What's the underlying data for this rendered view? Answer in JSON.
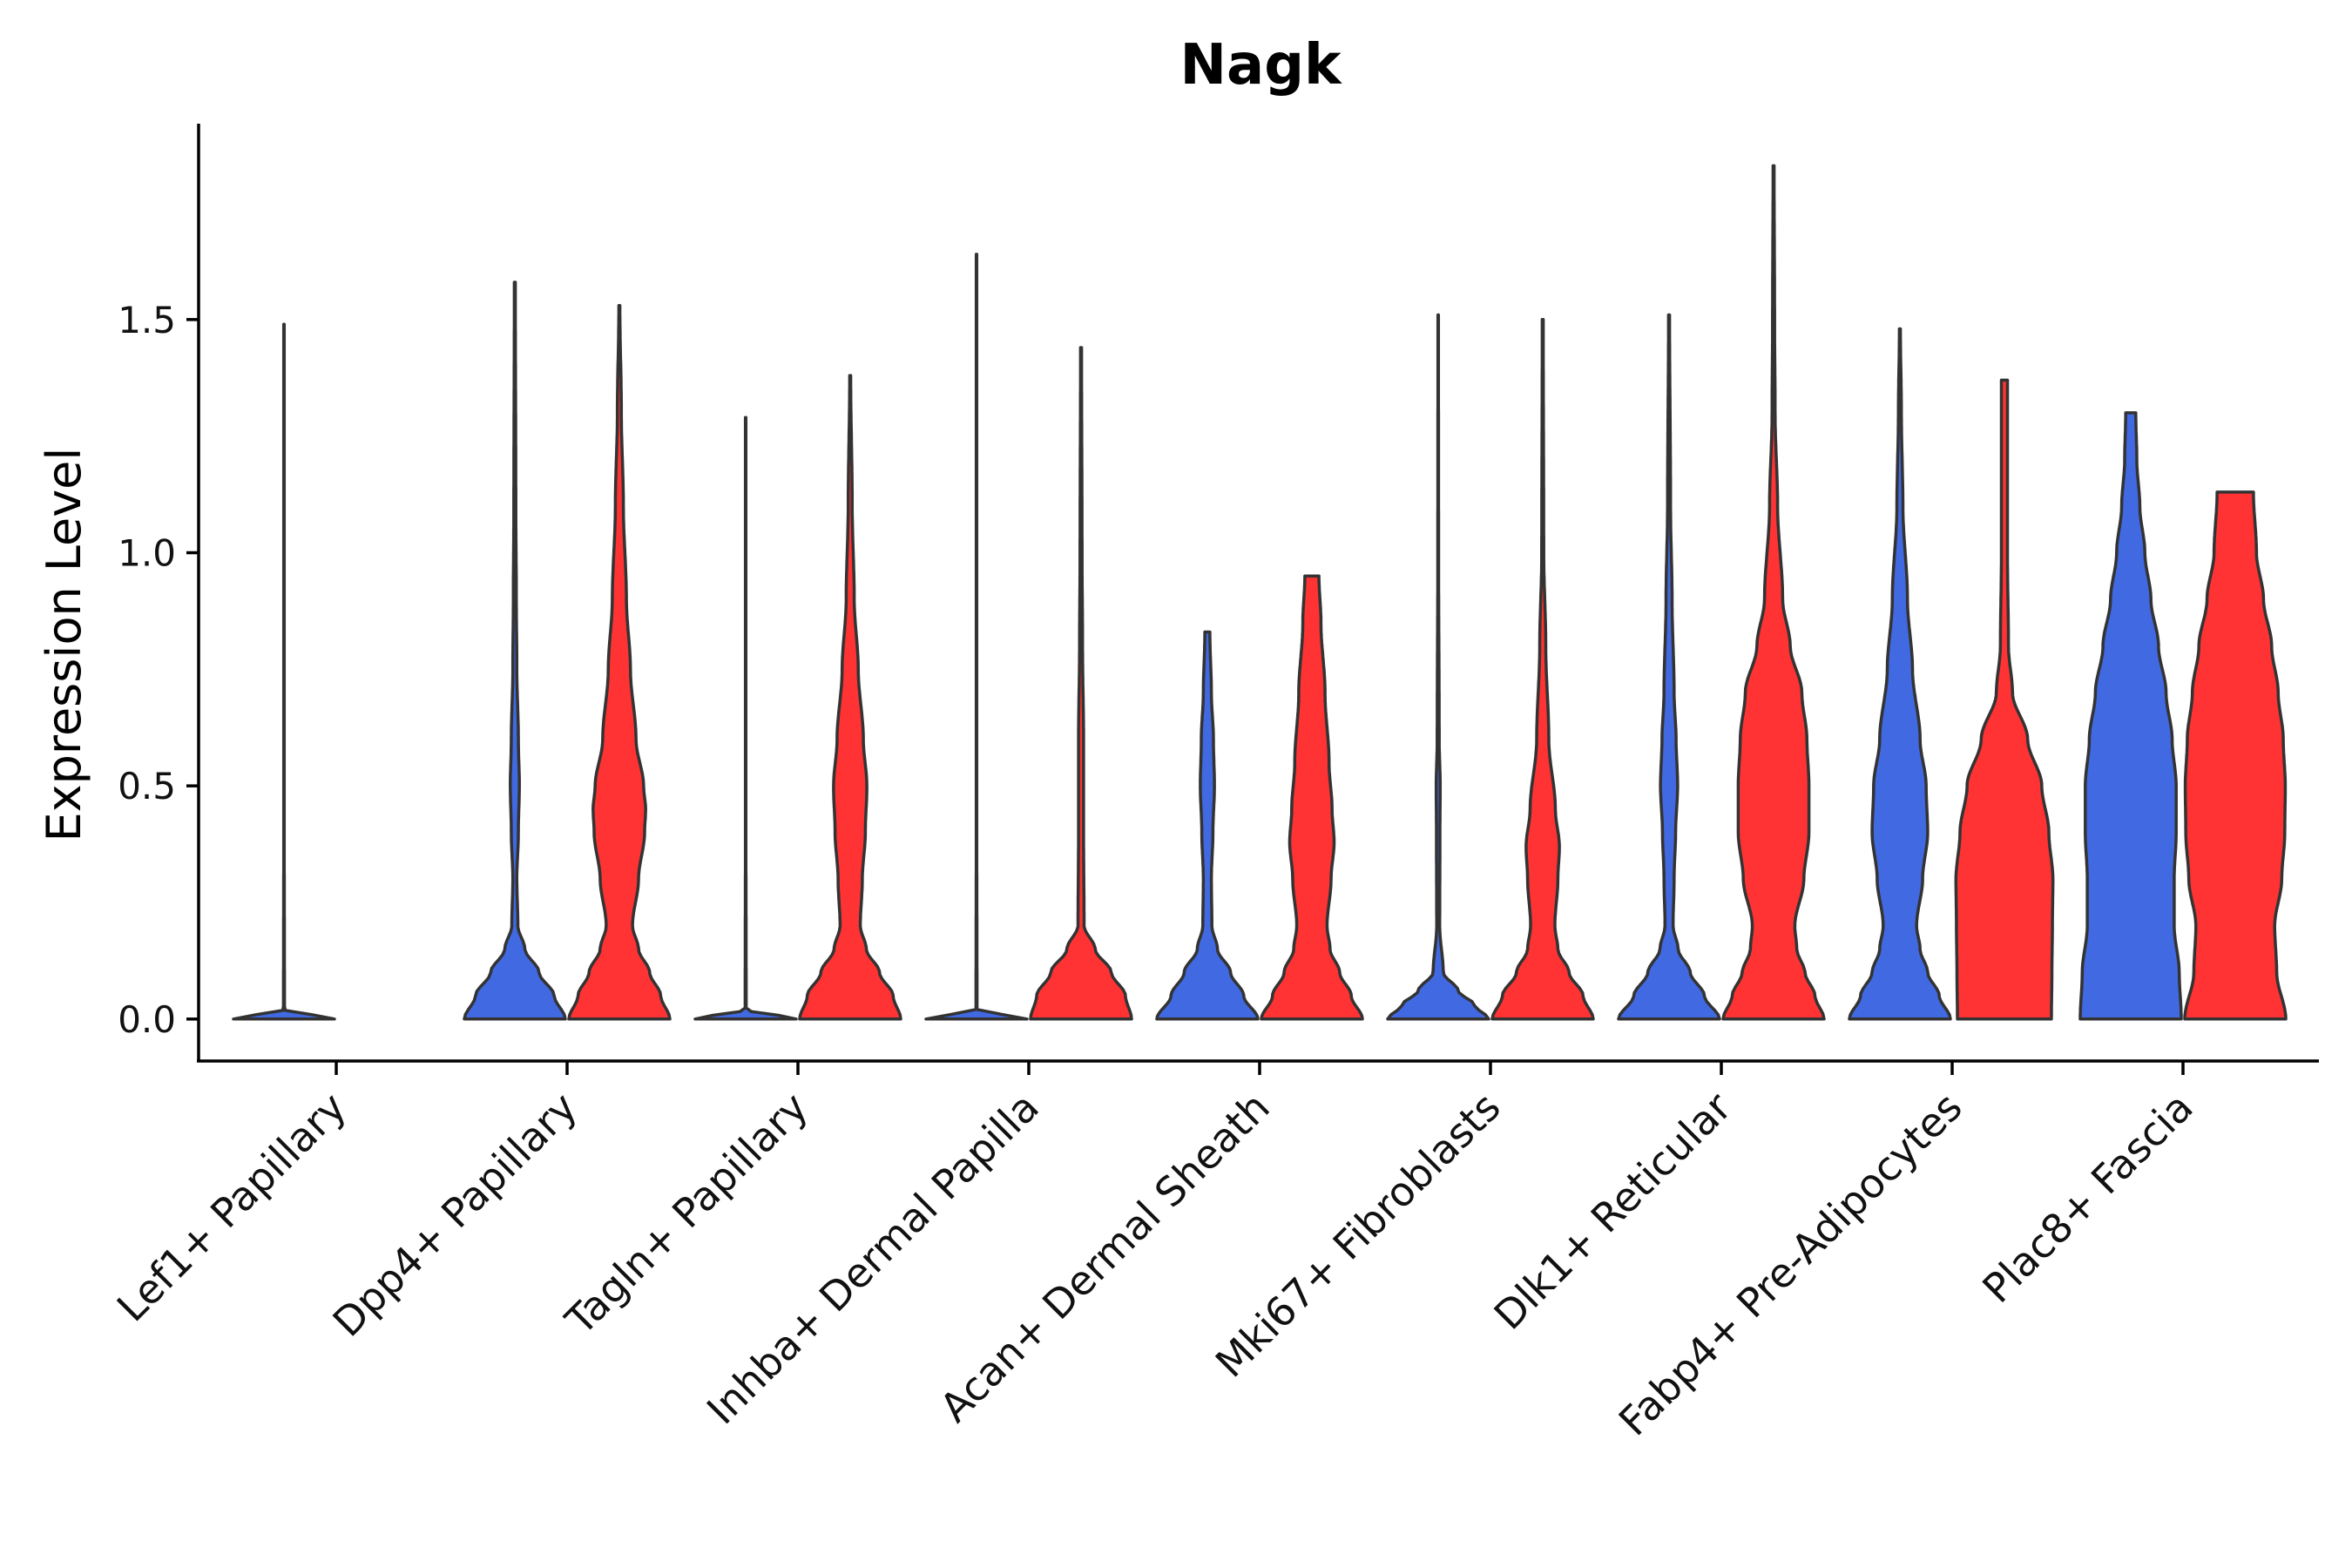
{
  "chart_data": {
    "type": "violin",
    "title": "Nagk",
    "xlabel": "",
    "ylabel": "Expression Level",
    "ylim": [
      -0.09,
      1.92
    ],
    "yticks": [
      0.0,
      0.5,
      1.0,
      1.5
    ],
    "ytick_labels": [
      "0.0",
      "0.5",
      "1.0",
      "1.5"
    ],
    "legend": "none",
    "colors": {
      "group1": "#4169E1",
      "group2": "#FF3333",
      "outline": "#333333"
    },
    "categories": [
      "Lef1+ Papillary",
      "Dpp4+ Papillary",
      "Tagln+ Papillary",
      "Inhba+ Dermal Papilla",
      "Acan+ Dermal Sheath",
      "Mki67+ Fibroblasts",
      "Dlk1+ Reticular",
      "Fabp4+ Pre-Adipocytes",
      "Plac8+ Fascia"
    ],
    "series": [
      {
        "name": "group1",
        "color": "#4169E1",
        "violins": [
          {
            "max": 1.49,
            "density": [
              [
                0,
                1
              ],
              [
                0.02,
                0.01
              ],
              [
                0.5,
                0.004
              ],
              [
                1.49,
                0.003
              ]
            ]
          },
          {
            "max": 1.58,
            "density": [
              [
                0,
                1
              ],
              [
                0.05,
                0.78
              ],
              [
                0.1,
                0.48
              ],
              [
                0.15,
                0.2
              ],
              [
                0.2,
                0.06
              ],
              [
                0.3,
                0.04
              ],
              [
                0.4,
                0.07
              ],
              [
                0.5,
                0.09
              ],
              [
                0.6,
                0.07
              ],
              [
                0.75,
                0.04
              ],
              [
                0.9,
                0.03
              ],
              [
                1.1,
                0.02
              ],
              [
                1.58,
                0.01
              ]
            ]
          },
          {
            "max": 1.29,
            "density": [
              [
                0,
                1
              ],
              [
                0.02,
                0.01
              ],
              [
                0.5,
                0.004
              ],
              [
                1.29,
                0.003
              ]
            ]
          },
          {
            "max": 1.64,
            "density": [
              [
                0,
                1
              ],
              [
                0.02,
                0.01
              ],
              [
                0.5,
                0.004
              ],
              [
                1.64,
                0.003
              ]
            ]
          },
          {
            "max": 0.83,
            "density": [
              [
                0,
                1
              ],
              [
                0.05,
                0.72
              ],
              [
                0.1,
                0.46
              ],
              [
                0.15,
                0.2
              ],
              [
                0.2,
                0.09
              ],
              [
                0.3,
                0.08
              ],
              [
                0.4,
                0.11
              ],
              [
                0.5,
                0.14
              ],
              [
                0.6,
                0.12
              ],
              [
                0.7,
                0.08
              ],
              [
                0.83,
                0.05
              ]
            ]
          },
          {
            "max": 1.51,
            "density": [
              [
                0,
                1
              ],
              [
                0.03,
                0.72
              ],
              [
                0.06,
                0.4
              ],
              [
                0.1,
                0.1
              ],
              [
                0.2,
                0.03
              ],
              [
                0.4,
                0.035
              ],
              [
                0.5,
                0.04
              ],
              [
                0.6,
                0.02
              ],
              [
                1.0,
                0.008
              ],
              [
                1.51,
                0.005
              ]
            ]
          },
          {
            "max": 1.51,
            "density": [
              [
                0,
                1
              ],
              [
                0.05,
                0.7
              ],
              [
                0.1,
                0.42
              ],
              [
                0.15,
                0.18
              ],
              [
                0.2,
                0.08
              ],
              [
                0.3,
                0.1
              ],
              [
                0.4,
                0.13
              ],
              [
                0.5,
                0.17
              ],
              [
                0.6,
                0.14
              ],
              [
                0.7,
                0.1
              ],
              [
                0.9,
                0.06
              ],
              [
                1.1,
                0.03
              ],
              [
                1.51,
                0.01
              ]
            ]
          },
          {
            "max": 1.48,
            "density": [
              [
                0,
                1
              ],
              [
                0.05,
                0.78
              ],
              [
                0.1,
                0.55
              ],
              [
                0.15,
                0.4
              ],
              [
                0.2,
                0.33
              ],
              [
                0.3,
                0.45
              ],
              [
                0.4,
                0.55
              ],
              [
                0.5,
                0.52
              ],
              [
                0.6,
                0.4
              ],
              [
                0.75,
                0.25
              ],
              [
                0.9,
                0.15
              ],
              [
                1.1,
                0.06
              ],
              [
                1.3,
                0.03
              ],
              [
                1.48,
                0.01
              ]
            ]
          },
          {
            "max": 1.3,
            "density": [
              [
                0,
                1
              ],
              [
                0.1,
                0.96
              ],
              [
                0.2,
                0.86
              ],
              [
                0.3,
                0.86
              ],
              [
                0.4,
                0.9
              ],
              [
                0.5,
                0.9
              ],
              [
                0.6,
                0.82
              ],
              [
                0.7,
                0.7
              ],
              [
                0.8,
                0.55
              ],
              [
                0.9,
                0.4
              ],
              [
                1.0,
                0.28
              ],
              [
                1.1,
                0.18
              ],
              [
                1.2,
                0.12
              ],
              [
                1.3,
                0.1
              ]
            ]
          }
        ]
      },
      {
        "name": "group2",
        "color": "#FF3333",
        "violins": [
          {
            "max": 0.0,
            "density": []
          },
          {
            "max": 1.53,
            "density": [
              [
                0,
                1
              ],
              [
                0.05,
                0.82
              ],
              [
                0.1,
                0.6
              ],
              [
                0.15,
                0.38
              ],
              [
                0.2,
                0.26
              ],
              [
                0.3,
                0.38
              ],
              [
                0.4,
                0.5
              ],
              [
                0.45,
                0.52
              ],
              [
                0.5,
                0.48
              ],
              [
                0.6,
                0.33
              ],
              [
                0.75,
                0.22
              ],
              [
                0.9,
                0.14
              ],
              [
                1.1,
                0.08
              ],
              [
                1.3,
                0.04
              ],
              [
                1.53,
                0.01
              ]
            ]
          },
          {
            "max": 1.38,
            "density": [
              [
                0,
                1
              ],
              [
                0.05,
                0.85
              ],
              [
                0.1,
                0.58
              ],
              [
                0.15,
                0.32
              ],
              [
                0.2,
                0.2
              ],
              [
                0.3,
                0.24
              ],
              [
                0.4,
                0.3
              ],
              [
                0.5,
                0.33
              ],
              [
                0.6,
                0.26
              ],
              [
                0.75,
                0.16
              ],
              [
                0.9,
                0.08
              ],
              [
                1.1,
                0.04
              ],
              [
                1.38,
                0.01
              ]
            ]
          },
          {
            "max": 1.44,
            "density": [
              [
                0,
                1
              ],
              [
                0.05,
                0.88
              ],
              [
                0.1,
                0.6
              ],
              [
                0.15,
                0.28
              ],
              [
                0.2,
                0.06
              ],
              [
                0.4,
                0.05
              ],
              [
                0.6,
                0.05
              ],
              [
                0.8,
                0.03
              ],
              [
                1.0,
                0.02
              ],
              [
                1.44,
                0.01
              ]
            ]
          },
          {
            "max": 0.95,
            "density": [
              [
                0,
                1
              ],
              [
                0.05,
                0.78
              ],
              [
                0.1,
                0.55
              ],
              [
                0.15,
                0.36
              ],
              [
                0.2,
                0.3
              ],
              [
                0.3,
                0.38
              ],
              [
                0.38,
                0.44
              ],
              [
                0.45,
                0.4
              ],
              [
                0.55,
                0.34
              ],
              [
                0.7,
                0.26
              ],
              [
                0.85,
                0.18
              ],
              [
                0.95,
                0.14
              ]
            ]
          },
          {
            "max": 1.5,
            "density": [
              [
                0,
                1
              ],
              [
                0.05,
                0.8
              ],
              [
                0.1,
                0.52
              ],
              [
                0.15,
                0.3
              ],
              [
                0.2,
                0.24
              ],
              [
                0.3,
                0.3
              ],
              [
                0.37,
                0.33
              ],
              [
                0.45,
                0.25
              ],
              [
                0.6,
                0.12
              ],
              [
                0.8,
                0.06
              ],
              [
                1.0,
                0.02
              ],
              [
                1.5,
                0.01
              ]
            ]
          },
          {
            "max": 1.83,
            "density": [
              [
                0,
                1
              ],
              [
                0.05,
                0.82
              ],
              [
                0.1,
                0.62
              ],
              [
                0.15,
                0.46
              ],
              [
                0.2,
                0.42
              ],
              [
                0.3,
                0.6
              ],
              [
                0.4,
                0.7
              ],
              [
                0.5,
                0.7
              ],
              [
                0.6,
                0.66
              ],
              [
                0.7,
                0.56
              ],
              [
                0.8,
                0.33
              ],
              [
                0.9,
                0.18
              ],
              [
                1.1,
                0.08
              ],
              [
                1.3,
                0.03
              ],
              [
                1.5,
                0.02
              ],
              [
                1.83,
                0.01
              ]
            ]
          },
          {
            "max": 1.37,
            "density": [
              [
                0,
                0.93
              ],
              [
                0.1,
                0.94
              ],
              [
                0.2,
                0.95
              ],
              [
                0.3,
                0.96
              ],
              [
                0.4,
                0.88
              ],
              [
                0.5,
                0.74
              ],
              [
                0.6,
                0.46
              ],
              [
                0.7,
                0.16
              ],
              [
                0.8,
                0.08
              ],
              [
                1.0,
                0.06
              ],
              [
                1.2,
                0.06
              ],
              [
                1.37,
                0.06
              ]
            ]
          },
          {
            "max": 1.13,
            "density": [
              [
                0,
                1
              ],
              [
                0.1,
                0.82
              ],
              [
                0.2,
                0.78
              ],
              [
                0.3,
                0.92
              ],
              [
                0.4,
                0.98
              ],
              [
                0.5,
                0.99
              ],
              [
                0.6,
                0.95
              ],
              [
                0.7,
                0.85
              ],
              [
                0.8,
                0.72
              ],
              [
                0.9,
                0.56
              ],
              [
                1.0,
                0.42
              ],
              [
                1.13,
                0.36
              ]
            ]
          }
        ]
      }
    ]
  }
}
